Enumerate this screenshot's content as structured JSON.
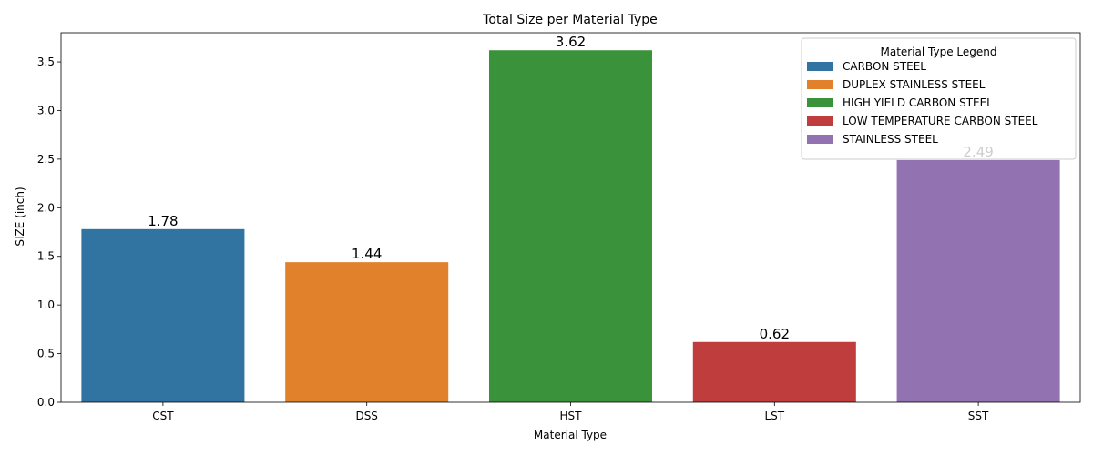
{
  "chart_data": {
    "type": "bar",
    "title": "Total Size per Material Type",
    "xlabel": "Material Type",
    "ylabel": "SIZE (inch)",
    "categories": [
      "CST",
      "DSS",
      "HST",
      "LST",
      "SST"
    ],
    "values": [
      1.78,
      1.44,
      3.62,
      0.62,
      2.49
    ],
    "value_labels": [
      "1.78",
      "1.44",
      "3.62",
      "0.62",
      "2.49"
    ],
    "colors": [
      "#3274a1",
      "#e1812c",
      "#3a923a",
      "#c03d3e",
      "#9372b2"
    ],
    "ylim": [
      0,
      3.8
    ],
    "yticks": [
      0.0,
      0.5,
      1.0,
      1.5,
      2.0,
      2.5,
      3.0,
      3.5
    ],
    "ytick_labels": [
      "0.0",
      "0.5",
      "1.0",
      "1.5",
      "2.0",
      "2.5",
      "3.0",
      "3.5"
    ],
    "grid": false,
    "legend": {
      "title": "Material Type Legend",
      "placement": "top-right",
      "entries": [
        {
          "label": "CARBON STEEL",
          "color": "#3274a1"
        },
        {
          "label": "DUPLEX STAINLESS STEEL",
          "color": "#e1812c"
        },
        {
          "label": "HIGH YIELD CARBON STEEL",
          "color": "#3a923a"
        },
        {
          "label": "LOW TEMPERATURE CARBON STEEL",
          "color": "#c03d3e"
        },
        {
          "label": "STAINLESS STEEL",
          "color": "#9372b2"
        }
      ]
    }
  }
}
